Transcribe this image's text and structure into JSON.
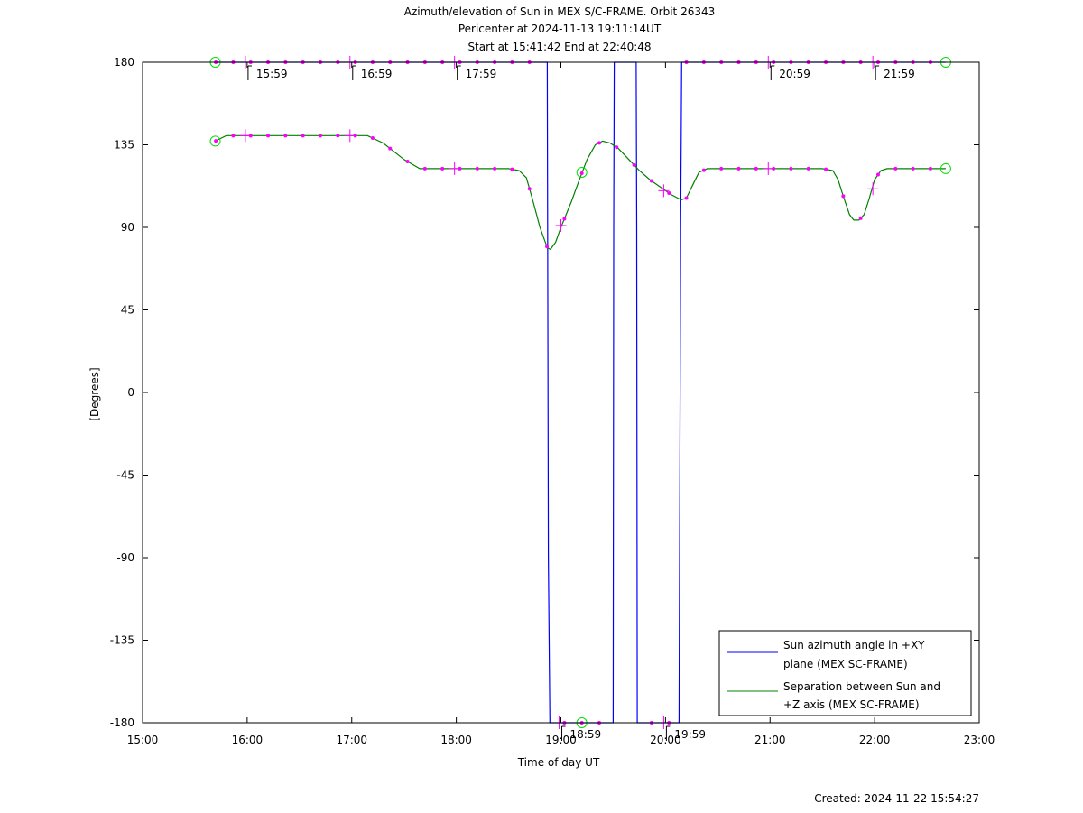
{
  "chart_data": {
    "type": "line",
    "title_lines": [
      "Azimuth/elevation of Sun in MEX S/C-FRAME.  Orbit 26343",
      "Pericenter at 2024-11-13 19:11:14UT",
      "Start at 15:41:42 End at 22:40:48"
    ],
    "xlabel": "Time of day UT",
    "ylabel": "[Degrees]",
    "xlim_hours": [
      15,
      23
    ],
    "ylim": [
      -180,
      180
    ],
    "x_ticks": [
      {
        "h": 15,
        "label": "15:00"
      },
      {
        "h": 16,
        "label": "16:00"
      },
      {
        "h": 17,
        "label": "17:00"
      },
      {
        "h": 18,
        "label": "18:00"
      },
      {
        "h": 19,
        "label": "19:00"
      },
      {
        "h": 20,
        "label": "20:00"
      },
      {
        "h": 21,
        "label": "21:00"
      },
      {
        "h": 22,
        "label": "22:00"
      },
      {
        "h": 23,
        "label": "23:00"
      }
    ],
    "y_ticks": [
      {
        "v": 180,
        "label": "180"
      },
      {
        "v": 135,
        "label": "135"
      },
      {
        "v": 90,
        "label": "90"
      },
      {
        "v": 45,
        "label": "45"
      },
      {
        "v": 0,
        "label": "0"
      },
      {
        "v": -45,
        "label": "-45"
      },
      {
        "v": -90,
        "label": "-90"
      },
      {
        "v": -135,
        "label": "-135"
      },
      {
        "v": -180,
        "label": "-180"
      }
    ],
    "hour_marks": [
      {
        "h": 15.983,
        "label": "15:59",
        "v": 180
      },
      {
        "h": 16.983,
        "label": "16:59",
        "v": 180
      },
      {
        "h": 17.983,
        "label": "17:59",
        "v": 180
      },
      {
        "h": 18.983,
        "label": "18:59",
        "v": -180
      },
      {
        "h": 19.983,
        "label": "19:59",
        "v": -180
      },
      {
        "h": 20.983,
        "label": "20:59",
        "v": 180
      },
      {
        "h": 21.983,
        "label": "21:59",
        "v": 180
      }
    ],
    "series": [
      {
        "name": "Sun azimuth angle in +XY plane (MEX SC-FRAME)",
        "legend_lines": [
          "Sun azimuth angle in +XY",
          "plane (MEX SC-FRAME)"
        ],
        "color": "#0000ff",
        "points": [
          [
            15.695,
            180
          ],
          [
            18.87,
            180
          ],
          [
            18.88,
            -90
          ],
          [
            18.895,
            -180
          ],
          [
            19.5,
            -180
          ],
          [
            19.505,
            90
          ],
          [
            19.51,
            180
          ],
          [
            19.72,
            180
          ],
          [
            19.725,
            90
          ],
          [
            19.73,
            -180
          ],
          [
            20.13,
            -180
          ],
          [
            20.145,
            90
          ],
          [
            20.155,
            180
          ],
          [
            22.68,
            180
          ]
        ]
      },
      {
        "name": "Separation between Sun and +Z axis (MEX SC-FRAME)",
        "legend_lines": [
          "Separation between Sun and",
          "+Z axis (MEX SC-FRAME)"
        ],
        "color": "#008000",
        "points": [
          [
            15.695,
            137
          ],
          [
            15.8,
            140
          ],
          [
            16.0,
            140
          ],
          [
            16.5,
            140
          ],
          [
            17.0,
            140
          ],
          [
            17.15,
            140
          ],
          [
            17.3,
            136
          ],
          [
            17.5,
            127
          ],
          [
            17.65,
            122
          ],
          [
            17.8,
            122
          ],
          [
            18.0,
            122
          ],
          [
            18.5,
            122
          ],
          [
            18.6,
            121
          ],
          [
            18.67,
            117
          ],
          [
            18.73,
            105
          ],
          [
            18.8,
            90
          ],
          [
            18.87,
            79
          ],
          [
            18.9,
            78
          ],
          [
            18.95,
            82
          ],
          [
            19.0,
            90
          ],
          [
            19.1,
            104
          ],
          [
            19.17,
            115
          ],
          [
            19.25,
            127
          ],
          [
            19.33,
            135
          ],
          [
            19.4,
            137
          ],
          [
            19.47,
            136
          ],
          [
            19.55,
            133
          ],
          [
            19.65,
            127
          ],
          [
            19.75,
            121
          ],
          [
            19.85,
            116
          ],
          [
            19.95,
            112
          ],
          [
            20.05,
            108
          ],
          [
            20.15,
            105
          ],
          [
            20.2,
            106
          ],
          [
            20.26,
            113
          ],
          [
            20.32,
            120
          ],
          [
            20.4,
            122
          ],
          [
            20.5,
            122
          ],
          [
            21.0,
            122
          ],
          [
            21.5,
            122
          ],
          [
            21.6,
            121
          ],
          [
            21.65,
            116
          ],
          [
            21.7,
            107
          ],
          [
            21.76,
            97
          ],
          [
            21.8,
            94
          ],
          [
            21.85,
            94
          ],
          [
            21.9,
            97
          ],
          [
            21.95,
            106
          ],
          [
            22.0,
            116
          ],
          [
            22.06,
            121
          ],
          [
            22.12,
            122
          ],
          [
            22.5,
            122
          ],
          [
            22.68,
            122
          ]
        ]
      }
    ],
    "markers": {
      "circles": [
        [
          15.695,
          180
        ],
        [
          15.695,
          137
        ],
        [
          19.2,
          120
        ],
        [
          19.2,
          -180
        ],
        [
          22.68,
          180
        ],
        [
          22.68,
          122
        ]
      ],
      "crosses": [
        [
          15.983,
          180
        ],
        [
          16.983,
          180
        ],
        [
          17.983,
          180
        ],
        [
          18.983,
          -180
        ],
        [
          19.983,
          -180
        ],
        [
          20.983,
          180
        ],
        [
          21.983,
          180
        ],
        [
          15.983,
          140
        ],
        [
          16.983,
          140
        ],
        [
          17.983,
          122
        ],
        [
          19.0,
          91
        ],
        [
          19.983,
          110
        ],
        [
          20.983,
          122
        ],
        [
          21.983,
          111
        ]
      ]
    },
    "created": "Created: 2024-11-22 15:54:27"
  }
}
